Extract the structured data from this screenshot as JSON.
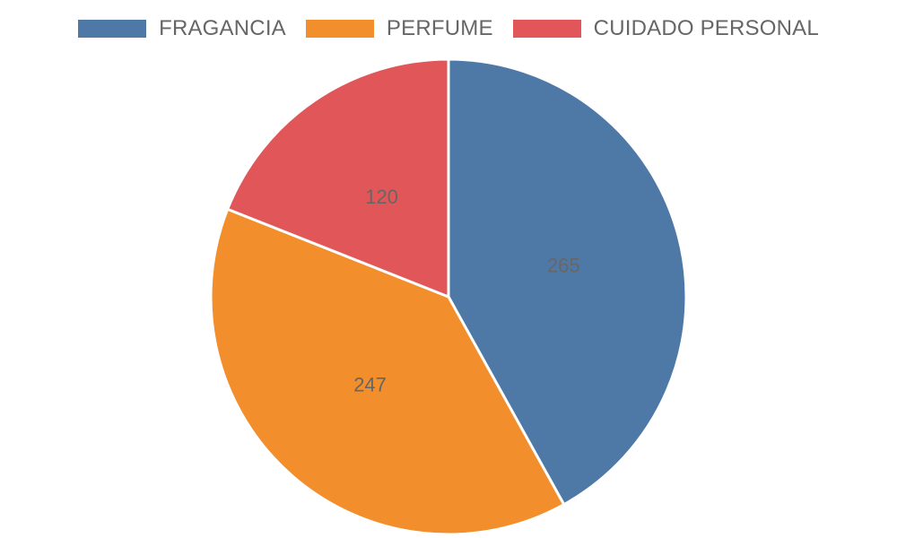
{
  "chart_data": {
    "type": "pie",
    "categories": [
      "FRAGANCIA",
      "PERFUME",
      "CUIDADO PERSONAL"
    ],
    "values": [
      265,
      247,
      120
    ],
    "colors": [
      "#4e79a7",
      "#f28e2b",
      "#e15759"
    ],
    "legend_position": "top",
    "data_labels_shown": true
  }
}
